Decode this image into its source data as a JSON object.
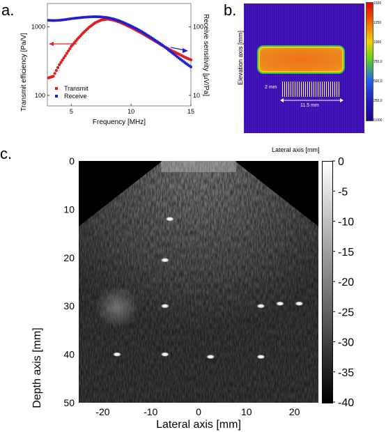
{
  "panels": {
    "a": {
      "letter": "a."
    },
    "b": {
      "letter": "b."
    },
    "c": {
      "letter": "c."
    }
  },
  "panel_a": {
    "xlabel": "Frequency [MHz]",
    "ylabel_left": "Transmit efficiency [Pa/V]",
    "ylabel_right": "Receive sensitivity [µV/Pa]",
    "x_ticks": [
      "5",
      "10",
      "15"
    ],
    "y_left_ticks": [
      "1000",
      "100"
    ],
    "y_right_ticks": [
      "100",
      "10"
    ],
    "legend": [
      {
        "label": "Transmit",
        "color": "#e02020"
      },
      {
        "label": "Receive",
        "color": "#2020d0"
      }
    ]
  },
  "panel_b": {
    "ylabel": "Elevation axis [mm]",
    "xlabel": "Lateral axis [mm]",
    "dim_height": "2 mm",
    "dim_width": "11.5 mm",
    "colorbar_ticks": [
      "1500",
      "1250",
      "1000",
      "750,0",
      "500,0",
      "250,0",
      "0,000"
    ]
  },
  "panel_c": {
    "ylabel": "Depth axis [mm]",
    "xlabel": "Lateral axis [mm]",
    "x_ticks": [
      "-20",
      "-10",
      "0",
      "10",
      "20"
    ],
    "y_ticks": [
      "0",
      "10",
      "20",
      "30",
      "40",
      "50"
    ],
    "colorbar_ticks": [
      "0",
      "-5",
      "-10",
      "-15",
      "-20",
      "-25",
      "-30",
      "-35",
      "-40"
    ]
  },
  "chart_data": [
    {
      "type": "scatter",
      "series": [
        {
          "name": "Transmit",
          "axis": "left",
          "unit": "Pa/V",
          "x": [
            3.1,
            3.5,
            4,
            4.5,
            5,
            5.5,
            6,
            6.5,
            7,
            7.5,
            8,
            8.5,
            9,
            9.5,
            10,
            10.5,
            11,
            11.5,
            12,
            12.5,
            13,
            13.5,
            14,
            14.5,
            15
          ],
          "y": [
            180,
            190,
            280,
            380,
            520,
            660,
            820,
            990,
            1150,
            1260,
            1300,
            1260,
            1180,
            1080,
            980,
            880,
            790,
            700,
            620,
            550,
            490,
            440,
            400,
            360,
            330
          ]
        },
        {
          "name": "Receive",
          "axis": "right",
          "unit": "µV/Pa",
          "x": [
            3.1,
            3.5,
            4,
            4.5,
            5,
            5.5,
            6,
            6.5,
            7,
            7.5,
            8,
            8.5,
            9,
            9.5,
            10,
            10.5,
            11,
            11.5,
            12,
            12.5,
            13,
            13.5,
            14,
            14.5,
            15
          ],
          "y": [
            125,
            124,
            125,
            128,
            132,
            135,
            138,
            140,
            141,
            140,
            137,
            131,
            123,
            113,
            103,
            93,
            83,
            73,
            64,
            56,
            48,
            41,
            35,
            30,
            26
          ]
        }
      ],
      "xlabel": "Frequency [MHz]",
      "xlim": [
        3,
        15
      ],
      "ylim_left": [
        70,
        2200
      ],
      "ylim_right": [
        7,
        220
      ],
      "yscale": "log"
    },
    {
      "type": "heatmap",
      "xlabel": "Lateral axis [mm]",
      "ylabel": "Elevation axis [mm]",
      "colorbar_range": [
        0,
        1500
      ],
      "region_width_mm": 11.5,
      "region_height_mm": 2
    },
    {
      "type": "heatmap",
      "xlabel": "Lateral axis [mm]",
      "ylabel": "Depth axis [mm]",
      "xlim": [
        -25,
        25
      ],
      "ylim": [
        0,
        50
      ],
      "colorbar_range_db": [
        -40,
        0
      ],
      "point_targets": [
        {
          "x": -6,
          "y": 12
        },
        {
          "x": -7,
          "y": 20.5
        },
        {
          "x": -7,
          "y": 30
        },
        {
          "x": 13,
          "y": 30
        },
        {
          "x": 17,
          "y": 29.5
        },
        {
          "x": 21,
          "y": 29.5
        },
        {
          "x": -17,
          "y": 40
        },
        {
          "x": -7,
          "y": 40
        },
        {
          "x": 2.5,
          "y": 40.5
        },
        {
          "x": 13,
          "y": 40.5
        }
      ],
      "cyst": {
        "x": -18,
        "y": 30.5
      }
    }
  ]
}
